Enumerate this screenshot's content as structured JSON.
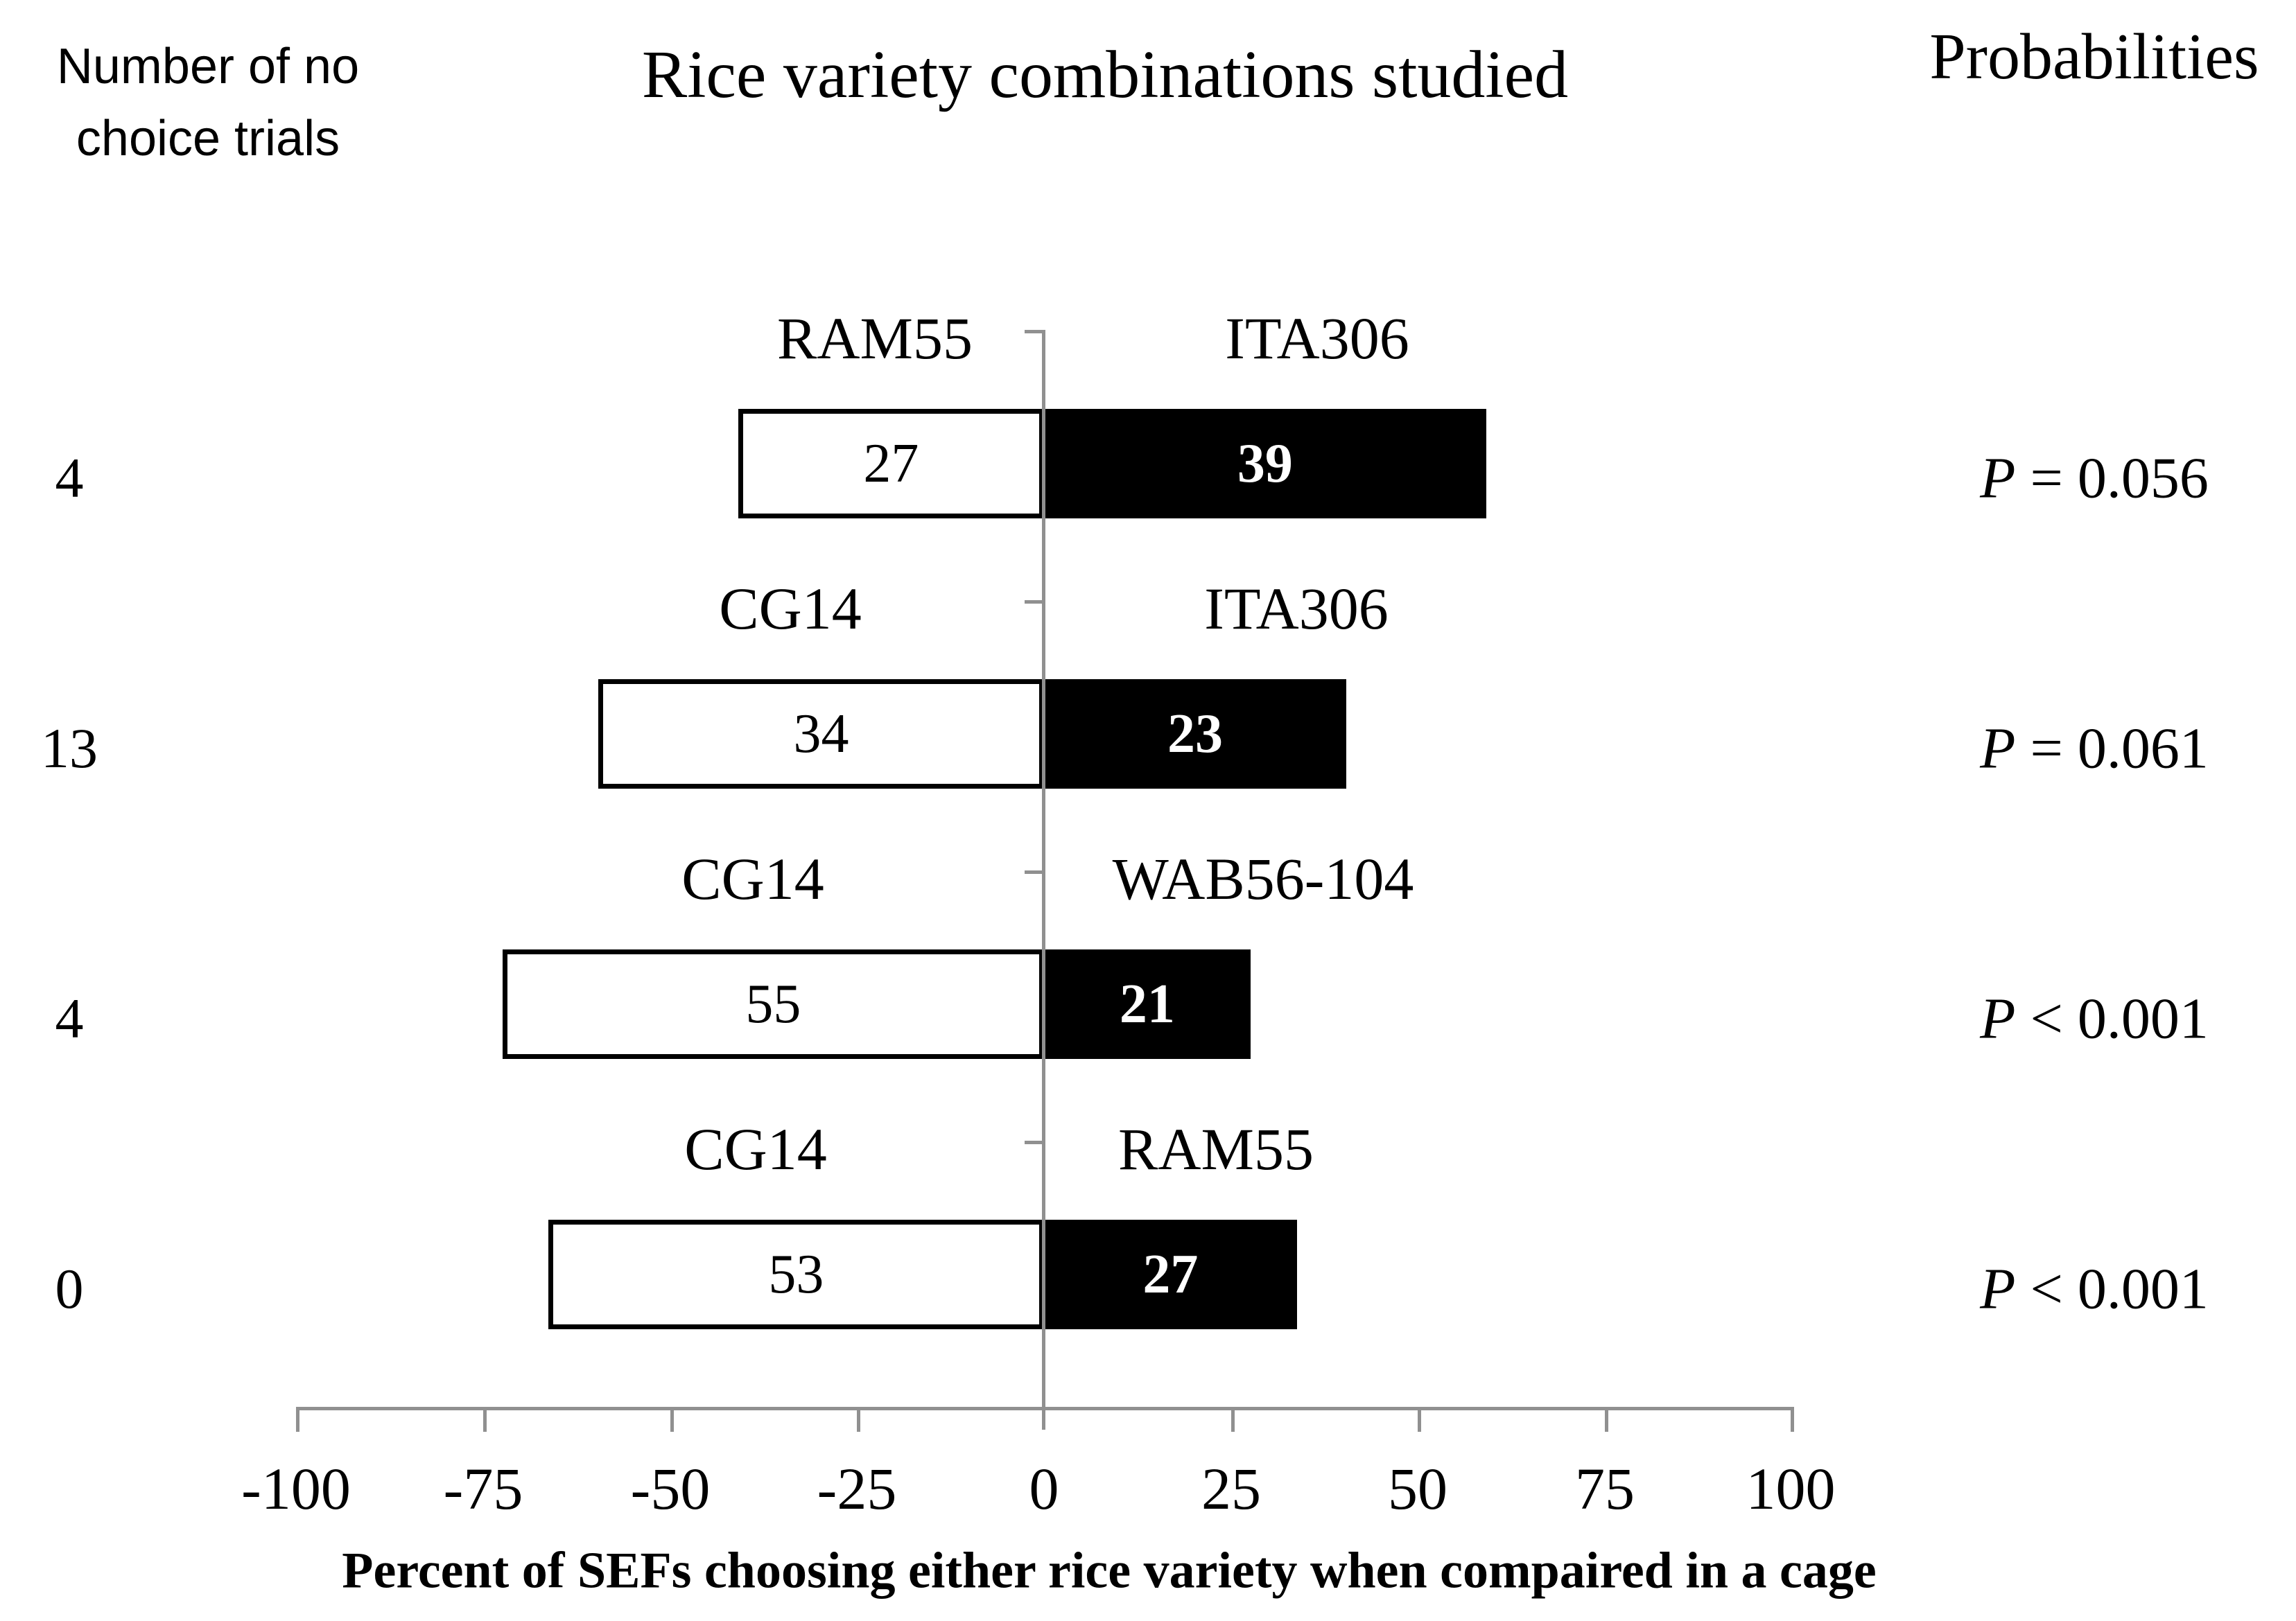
{
  "header": {
    "left_title_line1": "Number of no",
    "left_title_line2": "choice trials",
    "probabilities_title": "Probabilities"
  },
  "chart_data": {
    "type": "bar",
    "orientation": "horizontal-diverging",
    "title": "Rice variety combinations studied",
    "xlabel": "Percent of SEFs choosing either rice variety when compaired in a cage",
    "left_column_header": "Number of no choice trials",
    "right_column_header": "Probabilities",
    "xlim": [
      -100,
      100
    ],
    "x_ticks": [
      -100,
      -75,
      -50,
      -25,
      0,
      25,
      50,
      75,
      100
    ],
    "x_tick_labels": [
      "-100",
      "-75",
      "-50",
      "-25",
      "0",
      "25",
      "50",
      "75",
      "100"
    ],
    "bar_colors": {
      "left": "#ffffff",
      "right": "#000000"
    },
    "axis_color": "#909090",
    "rows": [
      {
        "no_choice_trials": "4",
        "left_variety": "RAM55",
        "left_count": "27",
        "left_percent": -40.9,
        "right_variety": "ITA306",
        "right_count": "39",
        "right_percent": 59.1,
        "probability": "P = 0.056"
      },
      {
        "no_choice_trials": "13",
        "left_variety": "CG14",
        "left_count": "34",
        "left_percent": -59.6,
        "right_variety": "ITA306",
        "right_count": "23",
        "right_percent": 40.4,
        "probability": "P = 0.061"
      },
      {
        "no_choice_trials": "4",
        "left_variety": "CG14",
        "left_count": "55",
        "left_percent": -72.4,
        "right_variety": "WAB56-104",
        "right_count": "21",
        "right_percent": 27.6,
        "probability": "P < 0.001"
      },
      {
        "no_choice_trials": "0",
        "left_variety": "CG14",
        "left_count": "53",
        "left_percent": -66.3,
        "right_variety": "RAM55",
        "right_count": "27",
        "right_percent": 33.8,
        "probability": "P < 0.001"
      }
    ]
  }
}
